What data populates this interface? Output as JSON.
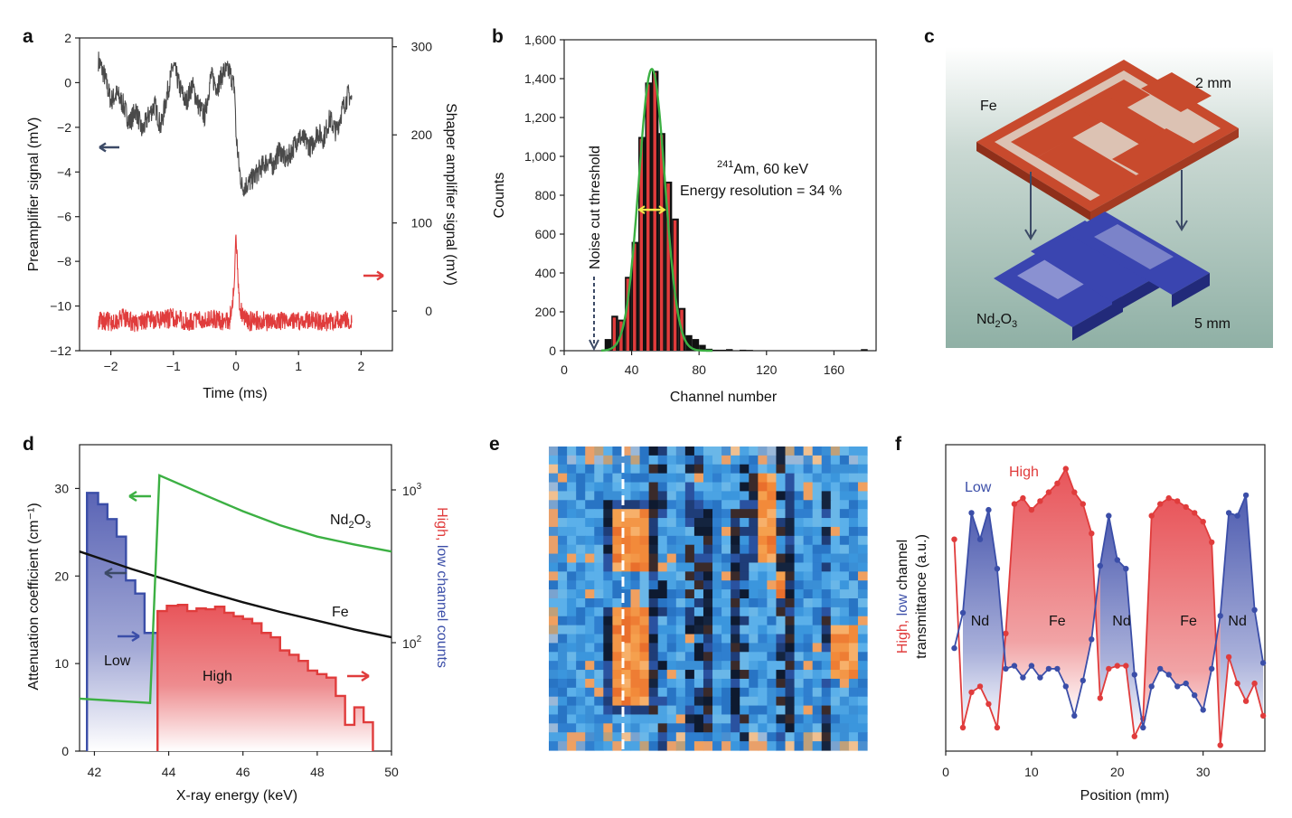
{
  "colors": {
    "black": "#111111",
    "gray": "#4a4a4a",
    "red": "#e03c3c",
    "blue": "#3b4ea8",
    "green": "#3cb043",
    "fe": "#c84a2d",
    "nd": "#3a45b0"
  },
  "panels": [
    "a",
    "b",
    "c",
    "d",
    "e",
    "f"
  ],
  "chart_data": [
    {
      "id": "a",
      "type": "line",
      "xlabel": "Time (ms)",
      "ylabel": "Preamplifier signal (mV)",
      "y2label": "Shaper amplifier signal (mV)",
      "xlim": [
        -2.5,
        2.5
      ],
      "ylim": [
        -12,
        2
      ],
      "y2lim": [
        -45,
        310
      ],
      "xticks": [
        "−2",
        "−1",
        "0",
        "1",
        "2"
      ],
      "yticks": [
        "2",
        "0",
        "−2",
        "−4",
        "−6",
        "−8",
        "−10",
        "−12"
      ],
      "y2ticks": [
        "300",
        "200",
        "100",
        "0"
      ],
      "series": [
        {
          "name": "Preamplifier",
          "axis": "left",
          "x": [
            -2.2,
            -2.1,
            -2.0,
            -1.9,
            -1.8,
            -1.7,
            -1.6,
            -1.5,
            -1.4,
            -1.3,
            -1.2,
            -1.1,
            -1.0,
            -0.9,
            -0.8,
            -0.7,
            -0.6,
            -0.5,
            -0.4,
            -0.3,
            -0.2,
            -0.1,
            -0.02,
            0.0,
            0.05,
            0.1,
            0.2,
            0.3,
            0.4,
            0.5,
            0.6,
            0.7,
            0.8,
            0.9,
            1.0,
            1.1,
            1.2,
            1.3,
            1.4,
            1.5,
            1.6,
            1.7,
            1.8,
            1.85
          ],
          "y": [
            1.0,
            0.3,
            -0.8,
            -0.5,
            -1.0,
            -1.8,
            -1.2,
            -2.2,
            -1.5,
            -1.0,
            -2.0,
            -0.5,
            0.8,
            -0.2,
            -0.9,
            -0.1,
            -1.0,
            -1.5,
            0.3,
            -0.2,
            0.5,
            0.5,
            -0.3,
            -2.3,
            -3.8,
            -4.7,
            -4.5,
            -4.2,
            -3.8,
            -3.5,
            -3.7,
            -3.0,
            -3.5,
            -3.0,
            -2.4,
            -2.6,
            -2.9,
            -2.2,
            -2.5,
            -1.6,
            -2.2,
            -1.2,
            -0.5,
            -0.8
          ]
        },
        {
          "name": "Shaper amplifier",
          "axis": "right",
          "x": [
            -2.2,
            -2.0,
            -1.8,
            -1.6,
            -1.4,
            -1.2,
            -1.0,
            -0.8,
            -0.6,
            -0.4,
            -0.2,
            -0.1,
            -0.03,
            0.0,
            0.03,
            0.06,
            0.1,
            0.2,
            0.4,
            0.6,
            0.8,
            1.0,
            1.2,
            1.4,
            1.6,
            1.85
          ],
          "y": [
            -10,
            -12,
            -8,
            -14,
            -9,
            -11,
            -7,
            -12,
            -10,
            -8,
            -12,
            -10,
            25,
            85,
            40,
            5,
            -2,
            -12,
            -10,
            -14,
            -9,
            -12,
            -9,
            -13,
            -10,
            -11
          ]
        }
      ],
      "annotations": []
    },
    {
      "id": "b",
      "type": "bar",
      "xlabel": "Channel number",
      "ylabel": "Counts",
      "xlim": [
        0,
        185
      ],
      "ylim": [
        0,
        1600
      ],
      "xticks": [
        "0",
        "40",
        "80",
        "120",
        "160"
      ],
      "yticks": [
        "1,600",
        "1,400",
        "1,200",
        "1,000",
        "800",
        "600",
        "400",
        "200",
        "0"
      ],
      "bin_width": 4,
      "bins": [
        26,
        30,
        34,
        38,
        42,
        46,
        50,
        54,
        58,
        62,
        66,
        70,
        74,
        78,
        82,
        86,
        90,
        94,
        98,
        102,
        106,
        110,
        178
      ],
      "values": [
        60,
        180,
        160,
        380,
        560,
        1100,
        1380,
        1440,
        1120,
        870,
        680,
        220,
        80,
        60,
        30,
        10,
        5,
        5,
        8,
        0,
        5,
        4,
        8
      ],
      "fit": {
        "center": 52,
        "sigma": 7.7,
        "amplitude": 1450
      },
      "annotations": {
        "threshold": "Noise cut threshold",
        "isotope_sup": "241",
        "isotope": "Am, 60 keV",
        "resolution": "Energy resolution = 34 %"
      }
    },
    {
      "id": "d",
      "type": "line",
      "xlabel": "X-ray energy (keV)",
      "ylabel": "Attenuation coefficient (cm⁻¹)",
      "y2label_high": "High, ",
      "y2label_low": "low channel counts",
      "xlim": [
        41.6,
        50
      ],
      "ylim": [
        0,
        35
      ],
      "xticks": [
        "42",
        "44",
        "46",
        "48",
        "50"
      ],
      "yticks": [
        "30",
        "20",
        "10",
        "0"
      ],
      "y2ticks": [
        {
          "base": "10",
          "exp": "3"
        },
        {
          "base": "10",
          "exp": "2"
        }
      ],
      "series": [
        {
          "name": "Fe",
          "x": [
            41.6,
            43,
            44,
            45,
            46,
            47,
            48,
            49,
            50
          ],
          "y": [
            22.8,
            20.8,
            19.5,
            18.2,
            17.0,
            15.9,
            14.9,
            13.9,
            13.0
          ]
        },
        {
          "name": "Nd2O3",
          "x": [
            41.6,
            43.5,
            43.75,
            45,
            46,
            47,
            48,
            49,
            50
          ],
          "y": [
            6.0,
            5.5,
            31.5,
            29.2,
            27.4,
            25.8,
            24.5,
            23.6,
            22.8
          ]
        },
        {
          "name": "Low",
          "x": [
            41.8,
            42.1,
            42.35,
            42.6,
            42.85,
            43.1,
            43.35,
            43.6
          ],
          "y": [
            29.5,
            28.2,
            26.5,
            24.5,
            19.5,
            18.0,
            13.5,
            13.5
          ]
        },
        {
          "name": "High",
          "x": [
            43.7,
            43.95,
            44.25,
            44.5,
            44.75,
            45.0,
            45.25,
            45.5,
            45.75,
            46.0,
            46.25,
            46.5,
            46.75,
            47.0,
            47.25,
            47.5,
            47.75,
            48.0,
            48.25,
            48.5,
            48.75,
            49.0,
            49.25,
            49.5
          ],
          "y": [
            16.0,
            16.6,
            16.7,
            16.0,
            16.3,
            16.2,
            16.5,
            15.8,
            15.4,
            15.1,
            14.6,
            13.5,
            13.0,
            11.5,
            11.0,
            10.3,
            9.2,
            8.8,
            8.4,
            6.3,
            3.0,
            5.0,
            3.3,
            0
          ]
        }
      ],
      "labels": {
        "nd": "Nd",
        "nd_sub": "2",
        "nd_o": "O",
        "nd_sub2": "3",
        "fe": "Fe",
        "low": "Low",
        "high": "High"
      }
    },
    {
      "id": "f",
      "type": "line",
      "xlabel": "Position (mm)",
      "ylabel_high": "High, ",
      "ylabel_low": "low",
      "ylabel_rest": " channel",
      "ylabel2": "transmittance (a.u.)",
      "xlim": [
        0,
        37.2
      ],
      "xticks": [
        "0",
        "10",
        "20",
        "30"
      ],
      "series": [
        {
          "name": "High",
          "x": [
            1,
            2,
            3,
            4,
            5,
            6,
            7,
            8,
            9,
            10,
            11,
            12,
            13,
            14,
            15,
            16,
            17,
            18,
            19,
            20,
            21,
            22,
            23,
            24,
            25,
            26,
            27,
            28,
            29,
            30,
            31,
            32,
            33,
            34,
            35,
            36,
            37
          ],
          "y": [
            0.72,
            0.08,
            0.2,
            0.22,
            0.16,
            0.08,
            0.4,
            0.84,
            0.86,
            0.82,
            0.85,
            0.88,
            0.91,
            0.96,
            0.88,
            0.84,
            0.74,
            0.18,
            0.28,
            0.29,
            0.29,
            0.05,
            0.11,
            0.8,
            0.84,
            0.86,
            0.85,
            0.83,
            0.81,
            0.78,
            0.71,
            0.02,
            0.32,
            0.23,
            0.17,
            0.23,
            0.12
          ]
        },
        {
          "name": "Low",
          "x": [
            1,
            2,
            3,
            4,
            5,
            6,
            7,
            8,
            9,
            10,
            11,
            12,
            13,
            14,
            15,
            16,
            17,
            18,
            19,
            20,
            21,
            22,
            23,
            24,
            25,
            26,
            27,
            28,
            29,
            30,
            31,
            32,
            33,
            34,
            35,
            36,
            37
          ],
          "y": [
            0.35,
            0.47,
            0.81,
            0.72,
            0.82,
            0.62,
            0.28,
            0.29,
            0.25,
            0.29,
            0.25,
            0.28,
            0.28,
            0.22,
            0.12,
            0.24,
            0.38,
            0.63,
            0.8,
            0.65,
            0.62,
            0.26,
            0.08,
            0.22,
            0.28,
            0.26,
            0.22,
            0.23,
            0.19,
            0.14,
            0.28,
            0.46,
            0.81,
            0.8,
            0.87,
            0.48,
            0.3
          ]
        }
      ],
      "region_labels": [
        "Nd",
        "Fe",
        "Nd",
        "Fe",
        "Nd"
      ],
      "legend": {
        "low": "Low",
        "high": "High"
      }
    }
  ],
  "illustration": {
    "fe_label": "Fe",
    "nd_label": "Nd",
    "nd_sub": "2",
    "nd_o": "O",
    "nd_sub2": "3",
    "size_top": "2 mm",
    "size_bottom": "5 mm"
  }
}
